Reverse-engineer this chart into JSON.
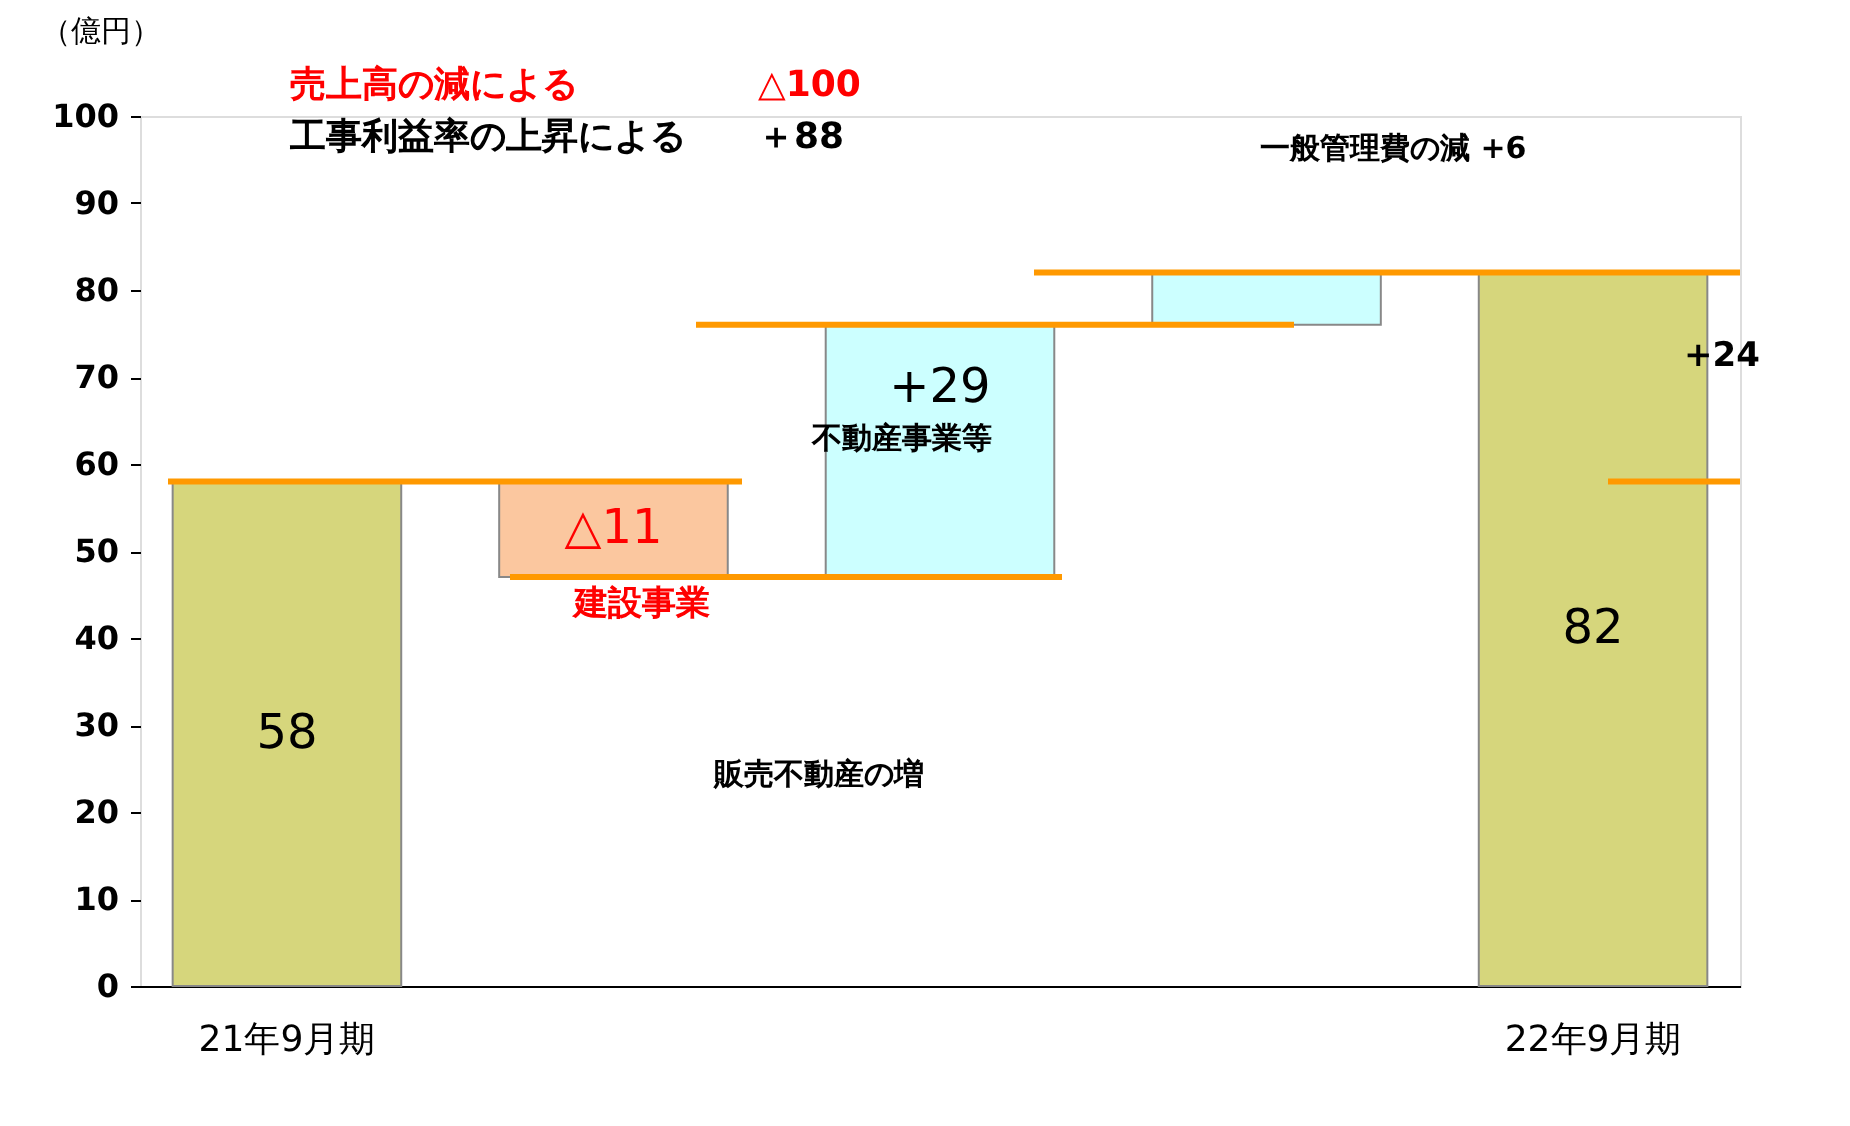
{
  "chart_data": {
    "type": "bar",
    "categories": [
      "21年9月期",
      null,
      null,
      null,
      "22年9月期"
    ],
    "values": [
      58,
      -11,
      29,
      6,
      82
    ],
    "base": [
      0,
      58,
      47,
      76,
      0
    ],
    "colors": [
      "#d6d67c",
      "#fbc79f",
      "#ccffff",
      "#ccffff",
      "#d6d67c"
    ],
    "value_labels": [
      "58",
      "△11",
      "+29",
      null,
      "82"
    ],
    "ylabel": "（億円）",
    "ylim": [
      0,
      100
    ],
    "yticks": [
      0,
      10,
      20,
      30,
      40,
      50,
      60,
      70,
      80,
      90,
      100
    ],
    "grid": false,
    "ref_lines": [
      {
        "axis": "y",
        "value": 58,
        "label": null,
        "color": "#ff9900"
      },
      {
        "axis": "y",
        "value": 47,
        "label": null,
        "color": "#ff9900"
      },
      {
        "axis": "y",
        "value": 76,
        "label": null,
        "color": "#ff9900"
      },
      {
        "axis": "y",
        "value": 82,
        "label": null,
        "color": "#ff9900"
      }
    ],
    "annotations": [
      "売上高の減による　　　　　△100",
      "工事利益率の上昇による　　＋88",
      "一般管理費の減  +6",
      "販売不動産の増",
      "+24",
      "建設事業",
      "不動産事業等"
    ]
  }
}
